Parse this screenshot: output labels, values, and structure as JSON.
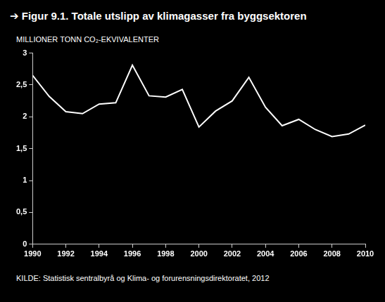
{
  "chart_data": {
    "type": "line",
    "title": "➔ Figur 9.1. Totale utslipp av klimagasser fra byggsektoren",
    "y_label": "MILLIONER TONN CO₂-EKVIVALENTER",
    "source": "KILDE: Statistisk sentralbyrå og Klima- og forurensningsdirektoratet, 2012",
    "x": [
      1990,
      1991,
      1992,
      1993,
      1994,
      1995,
      1996,
      1997,
      1998,
      1999,
      2000,
      2001,
      2002,
      2003,
      2004,
      2005,
      2006,
      2007,
      2008,
      2009,
      2010
    ],
    "values": [
      2.65,
      2.32,
      2.08,
      2.05,
      2.2,
      2.22,
      2.81,
      2.33,
      2.31,
      2.43,
      1.84,
      2.09,
      2.25,
      2.62,
      2.15,
      1.86,
      1.96,
      1.8,
      1.69,
      1.73,
      1.87
    ],
    "color": "#ffffff",
    "xlim": [
      1990,
      2010
    ],
    "xticks": [
      1990,
      1992,
      1994,
      1996,
      1998,
      2000,
      2002,
      2004,
      2006,
      2008,
      2010
    ],
    "ylim": [
      0,
      3
    ],
    "yticks": [
      0,
      {
        "value": 0.5,
        "label": "0,5"
      },
      1,
      {
        "value": 1.5,
        "label": "1,5"
      },
      2,
      {
        "value": 2.5,
        "label": "2,5"
      },
      3
    ],
    "grid": false
  }
}
